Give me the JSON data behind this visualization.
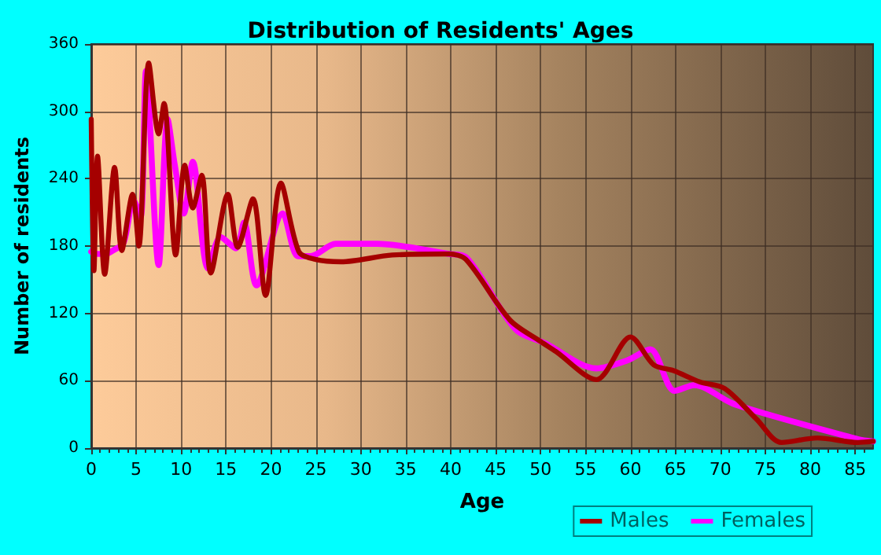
{
  "chart_data": {
    "type": "line",
    "title": "Distribution of Residents' Ages",
    "xlabel": "Age",
    "ylabel": "Number of residents",
    "xlim": [
      0,
      87
    ],
    "xticks": [
      0,
      5,
      10,
      15,
      20,
      25,
      30,
      35,
      40,
      45,
      50,
      55,
      60,
      65,
      70,
      75,
      80,
      85
    ],
    "ylim": [
      0,
      360
    ],
    "yticks": [
      0,
      60,
      120,
      180,
      240,
      300,
      360
    ],
    "grid": true,
    "legend": "bottom right",
    "marker": "none",
    "line_style": "solid",
    "series": [
      {
        "name": "Males",
        "color": "#a50000",
        "x": [
          0,
          0.3,
          0.7,
          1.5,
          2.6,
          3.4,
          4.6,
          5.3,
          6.4,
          7.5,
          8.1,
          9.4,
          10.4,
          11.3,
          12.3,
          13.3,
          15.2,
          16.3,
          18,
          19.4,
          21.1,
          23.1,
          25,
          27.8,
          33.5,
          39.8,
          41.7,
          46.6,
          50,
          51.7,
          56.2,
          60,
          62.6,
          64.8,
          67.7,
          70.5,
          74,
          76.8,
          80.8,
          85.3,
          87
        ],
        "values": [
          293,
          158,
          260,
          155,
          250,
          176,
          226,
          180,
          343,
          280,
          307,
          172,
          252,
          214,
          243,
          156,
          226,
          179,
          222,
          136,
          236,
          175,
          168,
          166,
          172,
          173,
          168,
          114,
          95,
          86,
          61,
          99,
          74,
          69,
          59,
          53,
          26,
          5,
          9,
          5,
          6
        ]
      },
      {
        "name": "Females",
        "color": "#ff00ff",
        "x": [
          0,
          0.5,
          1.6,
          2.4,
          3.6,
          4.7,
          5.5,
          6.1,
          7.5,
          8.5,
          9.3,
          10.3,
          11.3,
          13,
          14.4,
          16.1,
          17,
          18.4,
          21.3,
          23,
          24.4,
          27.2,
          31.8,
          39.8,
          41.7,
          47.2,
          50.6,
          56.2,
          59.6,
          62.2,
          64.9,
          67.1,
          71.6,
          85.3,
          87
        ],
        "values": [
          175,
          173,
          173,
          176,
          183,
          221,
          206,
          336,
          163,
          293,
          252,
          209,
          255,
          160,
          188,
          178,
          201,
          145,
          209,
          171,
          171,
          182,
          182,
          173,
          170,
          106,
          93,
          71,
          78,
          88,
          51,
          56,
          39,
          8,
          6
        ]
      }
    ]
  }
}
